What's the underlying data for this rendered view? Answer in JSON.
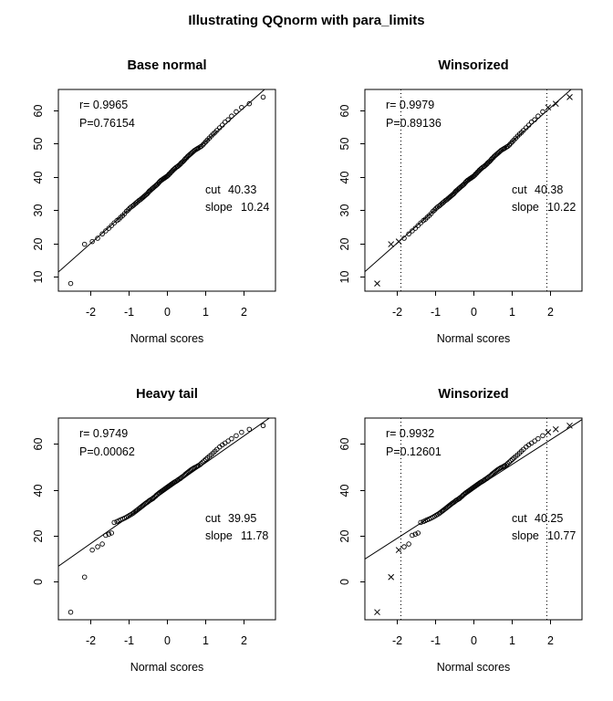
{
  "main_title": "Illustrating QQnorm with para_limits",
  "colors": {
    "foreground": "#000000",
    "background": "#ffffff"
  },
  "chart_data": {
    "type": "scatter",
    "xlabel": "Normal scores",
    "xlim": [
      -2.82,
      2.82
    ],
    "x_ticks": [
      -2,
      -1,
      0,
      1,
      2
    ],
    "marker": "open-circle",
    "winsorized_marker": "x-cross",
    "datasets": {
      "normal_scores_x": [
        -2.5,
        -2.14,
        -1.94,
        -1.8,
        -1.68,
        -1.59,
        -1.51,
        -1.44,
        -1.37,
        -1.3,
        -1.25,
        -1.2,
        -1.15,
        -1.1,
        -1.05,
        -1.01,
        -0.97,
        -0.93,
        -0.89,
        -0.86,
        -0.82,
        -0.79,
        -0.76,
        -0.72,
        -0.69,
        -0.66,
        -0.63,
        -0.6,
        -0.57,
        -0.54,
        -0.51,
        -0.48,
        -0.46,
        -0.43,
        -0.4,
        -0.37,
        -0.35,
        -0.32,
        -0.29,
        -0.27,
        -0.24,
        -0.21,
        -0.19,
        -0.16,
        -0.14,
        -0.11,
        -0.09,
        -0.06,
        -0.04,
        -0.01,
        0.01,
        0.04,
        0.06,
        0.09,
        0.11,
        0.14,
        0.16,
        0.19,
        0.21,
        0.24,
        0.27,
        0.29,
        0.32,
        0.35,
        0.37,
        0.4,
        0.43,
        0.46,
        0.48,
        0.51,
        0.54,
        0.57,
        0.6,
        0.63,
        0.66,
        0.69,
        0.72,
        0.76,
        0.79,
        0.82,
        0.86,
        0.89,
        0.93,
        0.97,
        1.01,
        1.05,
        1.1,
        1.15,
        1.2,
        1.25,
        1.3,
        1.37,
        1.44,
        1.51,
        1.59,
        1.68,
        1.8,
        1.94,
        2.14,
        2.5
      ],
      "base_y": [
        8.0,
        19.8,
        20.6,
        21.6,
        22.9,
        23.8,
        24.6,
        25.4,
        26.2,
        26.9,
        27.3,
        27.9,
        28.4,
        29.0,
        29.7,
        30.1,
        30.6,
        31.0,
        31.3,
        31.6,
        32.0,
        32.3,
        32.6,
        33.0,
        33.2,
        33.5,
        33.8,
        34.1,
        34.4,
        34.7,
        35.0,
        35.4,
        35.7,
        36.0,
        36.3,
        36.6,
        36.8,
        37.1,
        37.4,
        37.6,
        37.9,
        38.3,
        38.6,
        38.9,
        39.1,
        39.3,
        39.5,
        39.7,
        39.9,
        40.1,
        40.3,
        40.6,
        40.9,
        41.2,
        41.5,
        41.8,
        42.1,
        42.4,
        42.6,
        42.9,
        43.1,
        43.3,
        43.6,
        43.9,
        44.2,
        44.5,
        44.8,
        45.2,
        45.5,
        45.8,
        46.2,
        46.5,
        46.8,
        47.1,
        47.4,
        47.7,
        48.0,
        48.3,
        48.5,
        48.7,
        49.0,
        49.2,
        49.6,
        50.1,
        50.6,
        51.1,
        51.7,
        52.3,
        52.9,
        53.4,
        54.0,
        54.8,
        55.6,
        56.5,
        57.2,
        58.3,
        59.6,
        60.9,
        62.0,
        64.0
      ],
      "heavy_y": [
        -13.3,
        2.0,
        13.8,
        15.2,
        16.4,
        20.2,
        20.7,
        21.2,
        25.8,
        26.2,
        26.6,
        27.0,
        27.3,
        27.7,
        28.1,
        28.5,
        28.9,
        29.3,
        29.7,
        30.1,
        30.6,
        31.0,
        31.4,
        31.9,
        32.3,
        32.7,
        33.1,
        33.5,
        33.9,
        34.3,
        34.6,
        35.0,
        35.3,
        35.6,
        35.9,
        36.2,
        36.5,
        36.9,
        37.3,
        37.7,
        38.1,
        38.5,
        38.8,
        39.1,
        39.4,
        39.7,
        40.0,
        40.3,
        40.6,
        40.9,
        41.2,
        41.5,
        41.8,
        42.1,
        42.4,
        42.7,
        43.0,
        43.3,
        43.5,
        43.8,
        44.1,
        44.4,
        44.7,
        45.0,
        45.3,
        45.7,
        46.0,
        46.4,
        46.8,
        47.2,
        47.6,
        48.0,
        48.4,
        48.8,
        49.1,
        49.4,
        49.7,
        50.0,
        50.3,
        50.6,
        51.0,
        51.5,
        52.1,
        52.7,
        53.3,
        53.9,
        54.6,
        55.3,
        56.1,
        56.9,
        57.7,
        58.7,
        59.6,
        60.4,
        61.3,
        62.3,
        63.6,
        65.1,
        66.4,
        68.0
      ]
    },
    "panels": [
      {
        "title": "Base normal",
        "dataset": "base_y",
        "r_text": "r= 0.9965",
        "p_text": "P=0.76154",
        "cut_label": "cut",
        "cut_value": "40.33",
        "slope_label": "slope",
        "slope_value": "10.24",
        "fit": {
          "intercept": 40.33,
          "slope": 10.24
        },
        "winsorized": false,
        "para_limits": null,
        "ylim": [
          5.7,
          66.3
        ],
        "y_ticks": [
          10,
          20,
          30,
          40,
          50,
          60
        ]
      },
      {
        "title": "Winsorized",
        "dataset": "base_y",
        "r_text": "r= 0.9979",
        "p_text": "P=0.89136",
        "cut_label": "cut",
        "cut_value": "40.38",
        "slope_label": "slope",
        "slope_value": "10.22",
        "fit": {
          "intercept": 40.38,
          "slope": 10.22
        },
        "winsorized": true,
        "para_limits": [
          -1.9,
          1.9
        ],
        "ylim": [
          5.7,
          66.3
        ],
        "y_ticks": [
          10,
          20,
          30,
          40,
          50,
          60
        ]
      },
      {
        "title": "Heavy tail",
        "dataset": "heavy_y",
        "r_text": "r= 0.9749",
        "p_text": "P=0.00062",
        "cut_label": "cut",
        "cut_value": "39.95",
        "slope_label": "slope",
        "slope_value": "11.78",
        "fit": {
          "intercept": 39.95,
          "slope": 11.78
        },
        "winsorized": false,
        "para_limits": null,
        "ylim": [
          -16.6,
          71.3
        ],
        "y_ticks": [
          0,
          20,
          40,
          60
        ]
      },
      {
        "title": "Winsorized",
        "dataset": "heavy_y",
        "r_text": "r= 0.9932",
        "p_text": "P=0.12601",
        "cut_label": "cut",
        "cut_value": "40.25",
        "slope_label": "slope",
        "slope_value": "10.77",
        "fit": {
          "intercept": 40.25,
          "slope": 10.77
        },
        "winsorized": true,
        "para_limits": [
          -1.9,
          1.9
        ],
        "ylim": [
          -16.6,
          71.3
        ],
        "y_ticks": [
          0,
          20,
          40,
          60
        ]
      }
    ]
  }
}
